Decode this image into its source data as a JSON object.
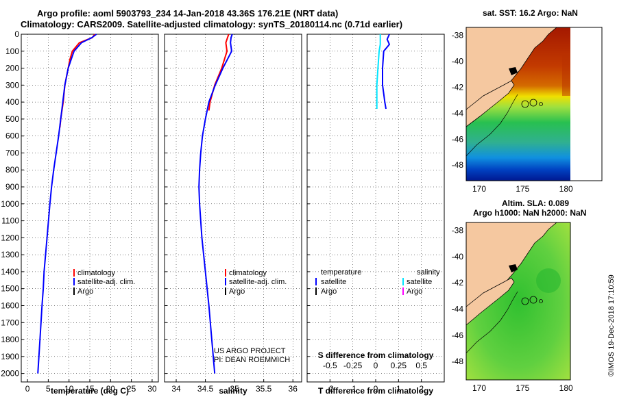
{
  "title_line1": "Argo profile: aoml 5903793_234 14-Jan-2018 43.36S 176.21E (NRT data)",
  "title_line2": "Climatology: CARS2009. Satellite-adjusted climatology: synTS_20180114.nc (0.71d earlier)",
  "map_sst_title": "sat. SST: 16.2 Argo: NaN",
  "map_sla_title1": "Altim. SLA: 0.089",
  "map_sla_title2": "Argo h1000: NaN h2000: NaN",
  "credit_project": "US ARGO PROJECT",
  "credit_pi": "PI: DEAN ROEMMICH",
  "timestamp": "©IMOS 19-Dec-2018 17:10:59",
  "colors": {
    "climatology": "#ff0000",
    "satellite": "#0000ff",
    "satellite_s": "#00e5ff",
    "argo_s": "#ff00ff"
  },
  "chart_data": [
    {
      "type": "line",
      "name": "temperature",
      "xlabel": "temperature (deg C)",
      "xlim": [
        -1.5,
        31.5
      ],
      "ylim": [
        0,
        2050
      ],
      "xticks": [
        0,
        5,
        10,
        15,
        20,
        25,
        30
      ],
      "yticks": [
        0,
        100,
        200,
        300,
        400,
        500,
        600,
        700,
        800,
        900,
        1000,
        1100,
        1200,
        1300,
        1400,
        1500,
        1600,
        1700,
        1800,
        1900,
        2000
      ],
      "legend": {
        "items": [
          "climatology",
          "satellite-adj. clim.",
          "Argo"
        ],
        "position": "lower-right"
      },
      "series": [
        {
          "name": "climatology",
          "color": "#ff0000",
          "depth": [
            0,
            20,
            50,
            100,
            150,
            200,
            300,
            400,
            500,
            550
          ],
          "values": [
            16.2,
            15.6,
            12.5,
            10.8,
            10.2,
            9.8,
            9.0,
            8.6,
            8.0,
            7.8
          ]
        },
        {
          "name": "satellite-adj. clim.",
          "color": "#0000ff",
          "depth": [
            0,
            20,
            50,
            100,
            150,
            200,
            300,
            400,
            500,
            600,
            700,
            800,
            900,
            1000,
            1200,
            1400,
            1500,
            1600,
            1800,
            2000
          ],
          "values": [
            16.6,
            15.5,
            13.0,
            11.2,
            10.5,
            9.8,
            9.0,
            8.5,
            8.0,
            7.5,
            6.9,
            6.3,
            5.8,
            5.4,
            4.7,
            4.0,
            3.8,
            3.5,
            3.0,
            2.5
          ]
        }
      ]
    },
    {
      "type": "line",
      "name": "salinity",
      "xlabel": "salinity",
      "xlim": [
        33.8,
        36.15
      ],
      "ylim": [
        0,
        2050
      ],
      "xticks": [
        34,
        34.5,
        35,
        35.5,
        36
      ],
      "legend": {
        "items": [
          "climatology",
          "satellite-adj. clim.",
          "Argo"
        ],
        "position": "lower-right"
      },
      "series": [
        {
          "name": "climatology",
          "color": "#ff0000",
          "depth": [
            0,
            20,
            50,
            100,
            200,
            300,
            400,
            450
          ],
          "values": [
            34.9,
            34.88,
            34.85,
            34.87,
            34.78,
            34.66,
            34.58,
            34.56
          ]
        },
        {
          "name": "satellite-adj. clim.",
          "color": "#0000ff",
          "depth": [
            0,
            20,
            50,
            100,
            200,
            300,
            400,
            500,
            600,
            700,
            800,
            900,
            1000,
            1200,
            1400,
            1600,
            1800,
            2000
          ],
          "values": [
            34.96,
            34.94,
            34.93,
            34.95,
            34.8,
            34.67,
            34.56,
            34.5,
            34.45,
            34.42,
            34.4,
            34.39,
            34.4,
            34.44,
            34.5,
            34.56,
            34.61,
            34.66
          ]
        }
      ]
    },
    {
      "type": "line",
      "name": "difference",
      "xlabel": "T difference from climatology",
      "xlabel_top": "S difference from climatology",
      "xlim": [
        -3,
        3
      ],
      "ylim": [
        0,
        2050
      ],
      "xticks": [
        -2,
        -1,
        0,
        1,
        2
      ],
      "xticks_s": [
        "-0.5",
        "-0.25",
        "0",
        "0.25",
        "0.5"
      ],
      "legend": {
        "left_header": "temperature",
        "right_header": "salinity",
        "left_items": [
          "satellite",
          "Argo"
        ],
        "right_items": [
          "satellite",
          "Argo"
        ]
      },
      "series": [
        {
          "name": "temperature satellite",
          "color": "#0000ff",
          "depth": [
            0,
            30,
            60,
            100,
            200,
            300,
            350,
            400,
            440
          ],
          "values": [
            0.6,
            0.5,
            0.6,
            0.35,
            0.3,
            0.3,
            0.35,
            0.4,
            0.45
          ]
        },
        {
          "name": "salinity satellite",
          "color": "#00e5ff",
          "depth": [
            0,
            60,
            100,
            200,
            300,
            400,
            440
          ],
          "values": [
            0.2,
            0.2,
            0.15,
            0.1,
            0.05,
            0.05,
            0.05
          ]
        }
      ]
    }
  ],
  "maps": [
    {
      "name": "sst",
      "xticks": [
        170,
        175,
        180
      ],
      "yticks": [
        -38,
        -40,
        -42,
        -44,
        -46,
        -48
      ]
    },
    {
      "name": "sla",
      "xticks": [
        170,
        175,
        180
      ],
      "yticks": [
        -38,
        -40,
        -42,
        -44,
        -46,
        -48
      ]
    }
  ]
}
